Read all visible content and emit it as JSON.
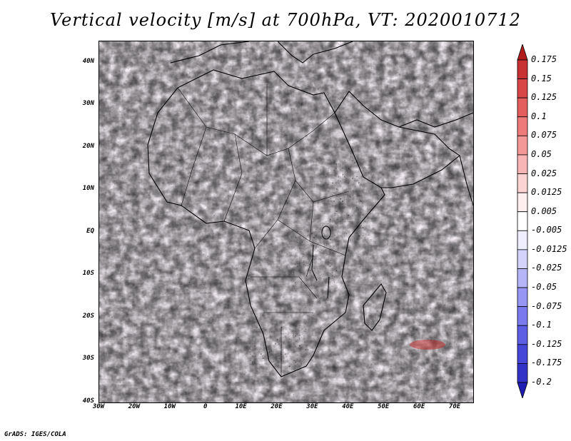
{
  "title": "Vertical velocity [m/s] at 700hPa, VT: 2020010712",
  "footer": "GrADS: IGES/COLA",
  "map": {
    "region": "Africa and surrounding oceans",
    "lat_labels": [
      "40N",
      "30N",
      "20N",
      "10N",
      "EQ",
      "10S",
      "20S",
      "30S",
      "40S"
    ],
    "lon_labels": [
      "30W",
      "20W",
      "10W",
      "0",
      "10E",
      "20E",
      "30E",
      "40E",
      "50E",
      "60E",
      "70E"
    ],
    "lat_range": [
      -40,
      45
    ],
    "lon_range": [
      -30,
      75
    ]
  },
  "colorbar": {
    "labels": [
      "0.175",
      "0.15",
      "0.125",
      "0.1",
      "0.075",
      "0.05",
      "0.025",
      "0.0125",
      "0.005",
      "-0.005",
      "-0.0125",
      "-0.025",
      "-0.05",
      "-0.075",
      "-0.1",
      "-0.125",
      "-0.175",
      "-0.2"
    ],
    "colors": [
      "#b21e1e",
      "#c83232",
      "#d94646",
      "#e55e5e",
      "#ee7a7a",
      "#f39797",
      "#f7b5b5",
      "#fbd3d3",
      "#ffeeee",
      "#ffffff",
      "#eeeeff",
      "#d3d3fb",
      "#b5b5f7",
      "#9797f3",
      "#7a7aee",
      "#5e5ee5",
      "#4646d9",
      "#3232c8",
      "#1e1eb2"
    ]
  }
}
